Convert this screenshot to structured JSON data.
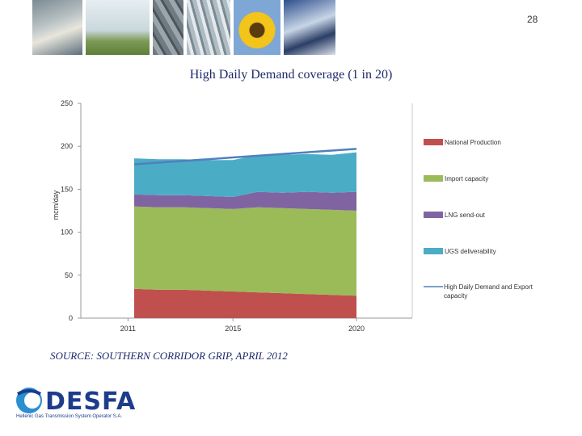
{
  "page_number": "28",
  "source_text": "SOURCE: SOUTHERN CORRIDOR GRIP, APRIL 2012",
  "logo": {
    "name": "DESFA",
    "subtitle": "Hellenic Gas Transmission System Operator S.A."
  },
  "chart_data": {
    "type": "area",
    "title": "High Daily Demand coverage (1 in 20)",
    "xlabel": "",
    "ylabel": "mcm/day",
    "x": [
      2011,
      2012,
      2013,
      2014,
      2015,
      2016,
      2017,
      2018,
      2019,
      2020
    ],
    "x_tick_labels": [
      "2011",
      "2015",
      "2020"
    ],
    "x_tick_values": [
      2010.75,
      2015,
      2020
    ],
    "ylim": [
      0,
      250
    ],
    "y_ticks": [
      0,
      50,
      100,
      150,
      200,
      250
    ],
    "stacked": true,
    "legend_position": "right",
    "series": [
      {
        "name": "National Production",
        "color": "#c0504d",
        "values": [
          34,
          33,
          33,
          32,
          31,
          30,
          29,
          28,
          27,
          26
        ]
      },
      {
        "name": "Import capacity",
        "color": "#9bbb59",
        "values": [
          96,
          96,
          96,
          96,
          96,
          99,
          99,
          99,
          99,
          99
        ]
      },
      {
        "name": "LNG send-out",
        "color": "#8064a2",
        "values": [
          14,
          14,
          14,
          14,
          14,
          18,
          18,
          20,
          20,
          22
        ]
      },
      {
        "name": "UGS deliverability",
        "color": "#4bacc6",
        "values": [
          42,
          42,
          42,
          42,
          43,
          43,
          44,
          44,
          44,
          46
        ]
      }
    ],
    "line_series": {
      "name": "High Daily Demand and Export capacity",
      "color": "#4f81bd",
      "values": [
        179,
        181,
        183,
        185,
        187,
        189,
        191,
        193,
        195,
        197
      ]
    }
  }
}
